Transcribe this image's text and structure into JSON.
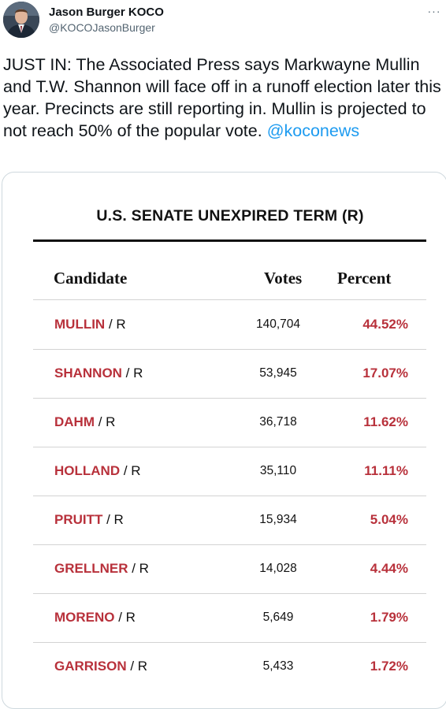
{
  "author": {
    "name": "Jason Burger KOCO",
    "handle": "@KOCOJasonBurger",
    "more_label": "···"
  },
  "tweet": {
    "text": "JUST IN: The Associated Press says Markwayne Mullin and T.W. Shannon will face off in a runoff election later this year. Precincts are still reporting in. Mullin is projected to not reach 50% of the popular vote.",
    "mention": "@koconews"
  },
  "results": {
    "title": "U.S. SENATE UNEXPIRED TERM (R)",
    "columns": {
      "candidate": "Candidate",
      "votes": "Votes",
      "percent": "Percent"
    },
    "rows": [
      {
        "name": "MULLIN",
        "party": " / R",
        "votes": "140,704",
        "percent": "44.52%"
      },
      {
        "name": "SHANNON",
        "party": " / R",
        "votes": "53,945",
        "percent": "17.07%"
      },
      {
        "name": "DAHM",
        "party": " / R",
        "votes": "36,718",
        "percent": "11.62%"
      },
      {
        "name": "HOLLAND",
        "party": " / R",
        "votes": "35,110",
        "percent": "11.11%"
      },
      {
        "name": "PRUITT",
        "party": " / R",
        "votes": "15,934",
        "percent": "5.04%"
      },
      {
        "name": "GRELLNER",
        "party": " / R",
        "votes": "14,028",
        "percent": "4.44%"
      },
      {
        "name": "MORENO",
        "party": " / R",
        "votes": "5,649",
        "percent": "1.79%"
      },
      {
        "name": "GARRISON",
        "party": " / R",
        "votes": "5,433",
        "percent": "1.72%"
      }
    ]
  },
  "colors": {
    "accent_link": "#1d9bf0",
    "candidate_red": "#b8313b",
    "text_primary": "#0f1419",
    "text_secondary": "#536471"
  },
  "icons": {
    "avatar": "profile-photo"
  }
}
